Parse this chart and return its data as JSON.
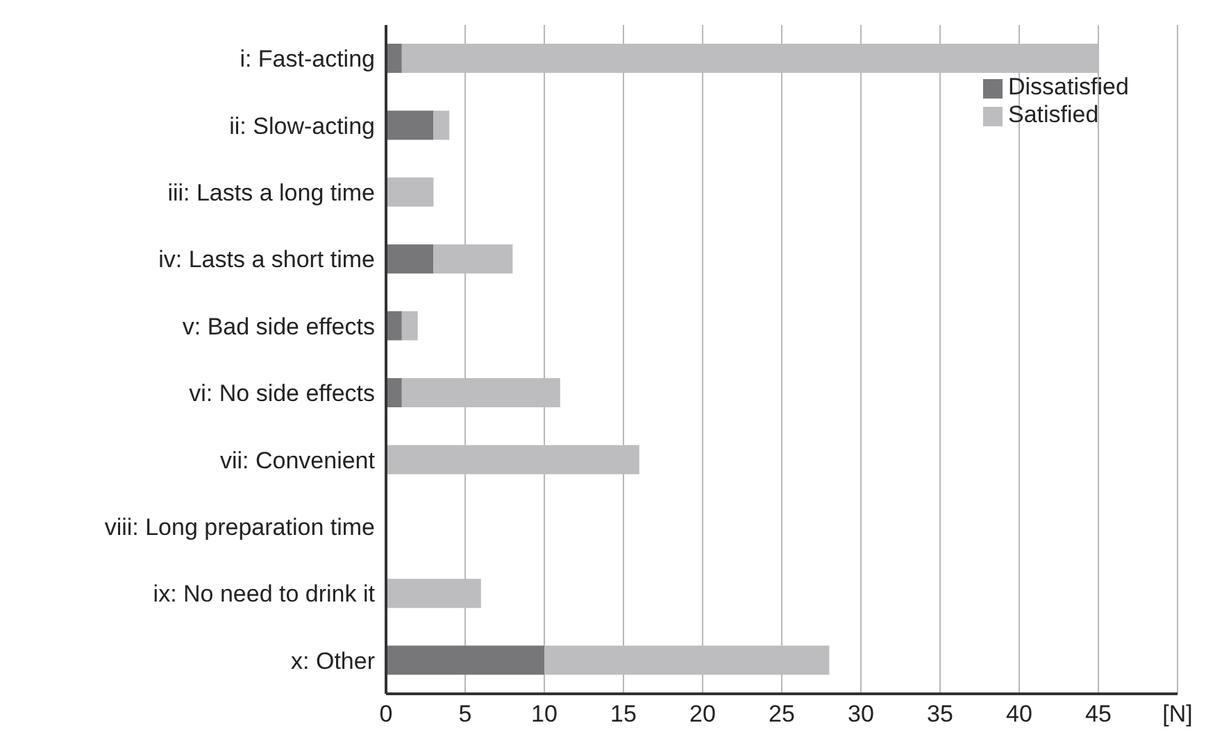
{
  "chart_data": {
    "type": "bar",
    "orientation": "horizontal",
    "stacked": true,
    "categories": [
      "i: Fast-acting",
      "ii: Slow-acting",
      "iii: Lasts a long time",
      "iv: Lasts a short time",
      "v: Bad side effects",
      "vi: No side effects",
      "vii: Convenient",
      "viii: Long preparation time",
      "ix: No need to drink it",
      "x: Other"
    ],
    "series": [
      {
        "name": "Dissatisfied",
        "color": "#77777a",
        "values": [
          1,
          3,
          0,
          3,
          1,
          1,
          0,
          0,
          0,
          10
        ]
      },
      {
        "name": "Satisfied",
        "color": "#bdbdc0",
        "values": [
          44,
          1,
          3,
          5,
          1,
          10,
          16,
          0,
          6,
          18
        ]
      }
    ],
    "xlim": [
      0,
      50
    ],
    "xticks": [
      0,
      5,
      10,
      15,
      20,
      25,
      30,
      35,
      40,
      45,
      {
        "value": 50,
        "label": "[N]"
      }
    ],
    "grid": "x",
    "legend": "top right"
  }
}
